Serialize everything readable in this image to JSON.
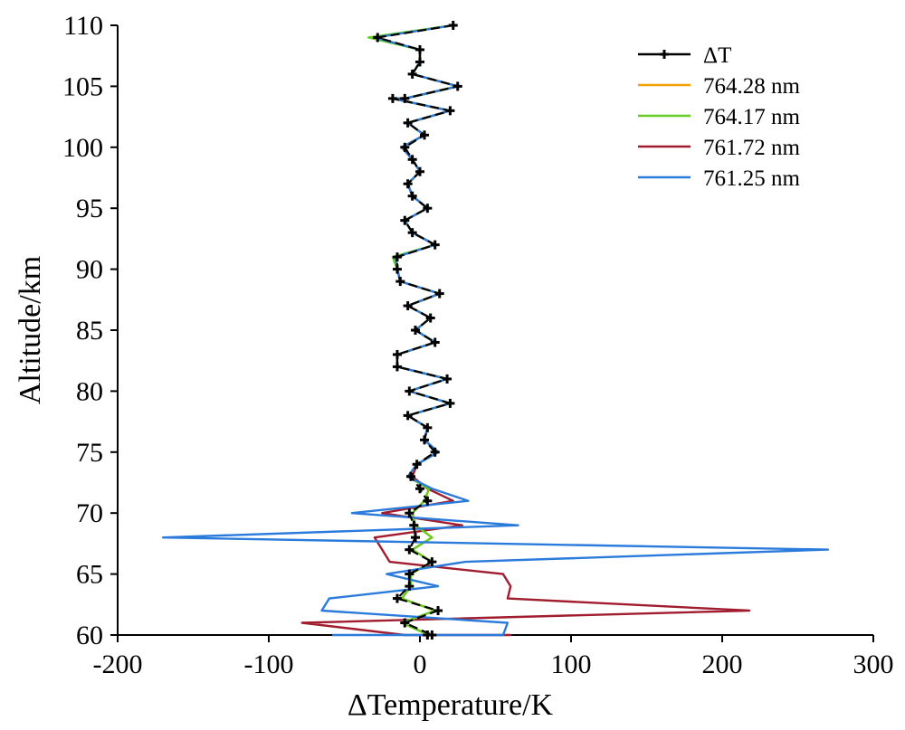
{
  "chart_data": {
    "type": "line",
    "title": "",
    "xlabel": "ΔTemperature/K",
    "ylabel": "Altitude/km",
    "xlim": [
      -200,
      300
    ],
    "ylim": [
      60,
      110
    ],
    "xticks": [
      -200,
      -100,
      0,
      100,
      200,
      300
    ],
    "yticks": [
      60,
      65,
      70,
      75,
      80,
      85,
      90,
      95,
      100,
      105,
      110
    ],
    "xtick_labels": [
      "-200",
      "-100",
      "0",
      "100",
      "200",
      "300"
    ],
    "ytick_labels": [
      "60",
      "65",
      "70",
      "75",
      "80",
      "85",
      "90",
      "95",
      "100",
      "105",
      "110"
    ],
    "grid": false,
    "legend_position": "top-right",
    "series": [
      {
        "name": "ΔT",
        "color": "#000000",
        "marker": "plus",
        "dashed": true,
        "points": [
          [
            22,
            110
          ],
          [
            -28,
            109
          ],
          [
            0,
            108
          ],
          [
            0,
            107
          ],
          [
            -5,
            106
          ],
          [
            25,
            105
          ],
          [
            -10,
            104
          ],
          [
            -18,
            104
          ],
          [
            20,
            103
          ],
          [
            -8,
            102
          ],
          [
            3,
            101
          ],
          [
            -10,
            100
          ],
          [
            -5,
            99
          ],
          [
            0,
            98
          ],
          [
            -8,
            97
          ],
          [
            -5,
            96
          ],
          [
            5,
            95
          ],
          [
            -10,
            94
          ],
          [
            -5,
            93
          ],
          [
            10,
            92
          ],
          [
            -15,
            91
          ],
          [
            -15,
            90
          ],
          [
            -13,
            89
          ],
          [
            13,
            88
          ],
          [
            -8,
            87
          ],
          [
            7,
            86
          ],
          [
            -3,
            85
          ],
          [
            10,
            84
          ],
          [
            -15,
            83
          ],
          [
            -15,
            82
          ],
          [
            18,
            81
          ],
          [
            -7,
            80
          ],
          [
            20,
            79
          ],
          [
            -8,
            78
          ],
          [
            5,
            77
          ],
          [
            3,
            76
          ],
          [
            10,
            75
          ],
          [
            -2,
            74
          ],
          [
            -6,
            73
          ],
          [
            0,
            72
          ],
          [
            5,
            71
          ],
          [
            -7,
            70
          ],
          [
            -4,
            69
          ],
          [
            -3,
            68
          ],
          [
            -7,
            67
          ],
          [
            8,
            66
          ],
          [
            -7,
            65
          ],
          [
            -7,
            64
          ],
          [
            -15,
            63
          ],
          [
            12,
            62
          ],
          [
            -10,
            61
          ],
          [
            8,
            60
          ],
          [
            5,
            60
          ]
        ]
      },
      {
        "name": "764.28 nm",
        "color": "#f5a000",
        "points": [
          [
            22,
            110
          ],
          [
            -32,
            109
          ],
          [
            0,
            108
          ],
          [
            0,
            107
          ],
          [
            -5,
            106
          ],
          [
            25,
            105
          ],
          [
            -10,
            104
          ],
          [
            -18,
            104
          ],
          [
            20,
            103
          ],
          [
            -8,
            102
          ],
          [
            3,
            101
          ],
          [
            -12,
            100
          ],
          [
            -5,
            99
          ],
          [
            0,
            98
          ],
          [
            -8,
            97
          ],
          [
            -5,
            96
          ],
          [
            5,
            95
          ],
          [
            -10,
            94
          ],
          [
            -5,
            93
          ],
          [
            10,
            92
          ],
          [
            -17,
            91
          ],
          [
            -15,
            90
          ],
          [
            -13,
            89
          ],
          [
            13,
            88
          ],
          [
            -8,
            87
          ],
          [
            7,
            86
          ],
          [
            -3,
            85
          ],
          [
            10,
            84
          ],
          [
            -15,
            83
          ],
          [
            -15,
            82
          ],
          [
            18,
            81
          ],
          [
            -7,
            80
          ],
          [
            20,
            79
          ],
          [
            -8,
            78
          ],
          [
            5,
            77
          ],
          [
            3,
            76
          ],
          [
            12,
            75
          ],
          [
            -2,
            74
          ],
          [
            -8,
            73
          ],
          [
            6,
            72
          ],
          [
            3,
            71
          ],
          [
            -5,
            70
          ],
          [
            -3,
            69
          ],
          [
            8,
            68
          ],
          [
            -5,
            67
          ],
          [
            8,
            66
          ],
          [
            -6,
            65
          ],
          [
            -6,
            64
          ],
          [
            -12,
            63
          ],
          [
            10,
            62
          ],
          [
            -12,
            61
          ],
          [
            6,
            60
          ],
          [
            5,
            60
          ]
        ]
      },
      {
        "name": "764.17 nm",
        "color": "#66cc22",
        "points": [
          [
            22,
            110
          ],
          [
            -34,
            109
          ],
          [
            0,
            108
          ],
          [
            0,
            107
          ],
          [
            -5,
            106
          ],
          [
            25,
            105
          ],
          [
            -10,
            104
          ],
          [
            -18,
            104
          ],
          [
            20,
            103
          ],
          [
            -8,
            102
          ],
          [
            3,
            101
          ],
          [
            -12,
            100
          ],
          [
            -5,
            99
          ],
          [
            0,
            98
          ],
          [
            -8,
            97
          ],
          [
            -5,
            96
          ],
          [
            5,
            95
          ],
          [
            -10,
            94
          ],
          [
            -5,
            93
          ],
          [
            10,
            92
          ],
          [
            -18,
            91
          ],
          [
            -15,
            90
          ],
          [
            -13,
            89
          ],
          [
            13,
            88
          ],
          [
            -8,
            87
          ],
          [
            7,
            86
          ],
          [
            -3,
            85
          ],
          [
            10,
            84
          ],
          [
            -15,
            83
          ],
          [
            -15,
            82
          ],
          [
            18,
            81
          ],
          [
            -7,
            80
          ],
          [
            20,
            79
          ],
          [
            -8,
            78
          ],
          [
            5,
            77
          ],
          [
            3,
            76
          ],
          [
            12,
            75
          ],
          [
            -2,
            74
          ],
          [
            -8,
            73
          ],
          [
            6,
            72
          ],
          [
            3,
            71
          ],
          [
            -5,
            70
          ],
          [
            -3,
            69
          ],
          [
            8,
            68
          ],
          [
            -5,
            67
          ],
          [
            8,
            66
          ],
          [
            -6,
            65
          ],
          [
            -6,
            64
          ],
          [
            -12,
            63
          ],
          [
            10,
            62
          ],
          [
            -12,
            61
          ],
          [
            6,
            60
          ],
          [
            5,
            60
          ]
        ]
      },
      {
        "name": "761.72 nm",
        "color": "#a01c2e",
        "points": [
          [
            22,
            110
          ],
          [
            -30,
            109
          ],
          [
            0,
            108
          ],
          [
            0,
            107
          ],
          [
            -5,
            106
          ],
          [
            25,
            105
          ],
          [
            -10,
            104
          ],
          [
            -18,
            104
          ],
          [
            20,
            103
          ],
          [
            -8,
            102
          ],
          [
            3,
            101
          ],
          [
            -12,
            100
          ],
          [
            -5,
            99
          ],
          [
            0,
            98
          ],
          [
            -8,
            97
          ],
          [
            -5,
            96
          ],
          [
            5,
            95
          ],
          [
            -10,
            94
          ],
          [
            -5,
            93
          ],
          [
            10,
            92
          ],
          [
            -16,
            91
          ],
          [
            -15,
            90
          ],
          [
            -13,
            89
          ],
          [
            13,
            88
          ],
          [
            -8,
            87
          ],
          [
            7,
            86
          ],
          [
            -3,
            85
          ],
          [
            10,
            84
          ],
          [
            -15,
            83
          ],
          [
            -15,
            82
          ],
          [
            18,
            81
          ],
          [
            -7,
            80
          ],
          [
            20,
            79
          ],
          [
            -8,
            78
          ],
          [
            5,
            77
          ],
          [
            3,
            76
          ],
          [
            12,
            75
          ],
          [
            -2,
            74
          ],
          [
            -5,
            73
          ],
          [
            5,
            72
          ],
          [
            22,
            71
          ],
          [
            -25,
            70
          ],
          [
            28,
            69
          ],
          [
            -30,
            68
          ],
          [
            -25,
            67
          ],
          [
            -20,
            66
          ],
          [
            55,
            65
          ],
          [
            60,
            64
          ],
          [
            58,
            63
          ],
          [
            218,
            62
          ],
          [
            -78,
            61
          ],
          [
            -10,
            60
          ],
          [
            60,
            60
          ],
          [
            -5,
            60
          ]
        ]
      },
      {
        "name": "761.25 nm",
        "color": "#2a7bdb",
        "points": [
          [
            22,
            110
          ],
          [
            -30,
            109
          ],
          [
            0,
            108
          ],
          [
            0,
            107
          ],
          [
            -5,
            106
          ],
          [
            25,
            105
          ],
          [
            -10,
            104
          ],
          [
            -18,
            104
          ],
          [
            20,
            103
          ],
          [
            -8,
            102
          ],
          [
            3,
            101
          ],
          [
            -12,
            100
          ],
          [
            -5,
            99
          ],
          [
            0,
            98
          ],
          [
            -8,
            97
          ],
          [
            -5,
            96
          ],
          [
            5,
            95
          ],
          [
            -10,
            94
          ],
          [
            -5,
            93
          ],
          [
            10,
            92
          ],
          [
            -16,
            91
          ],
          [
            -15,
            90
          ],
          [
            -13,
            89
          ],
          [
            13,
            88
          ],
          [
            -8,
            87
          ],
          [
            7,
            86
          ],
          [
            -3,
            85
          ],
          [
            10,
            84
          ],
          [
            -15,
            83
          ],
          [
            -15,
            82
          ],
          [
            18,
            81
          ],
          [
            -7,
            80
          ],
          [
            20,
            79
          ],
          [
            -8,
            78
          ],
          [
            5,
            77
          ],
          [
            3,
            76
          ],
          [
            12,
            75
          ],
          [
            -2,
            74
          ],
          [
            -8,
            73
          ],
          [
            8,
            72
          ],
          [
            32,
            71
          ],
          [
            -45,
            70
          ],
          [
            65,
            69
          ],
          [
            -170,
            68
          ],
          [
            270,
            67
          ],
          [
            30,
            66
          ],
          [
            -22,
            65
          ],
          [
            12,
            64
          ],
          [
            -60,
            63
          ],
          [
            -65,
            62
          ],
          [
            58,
            61
          ],
          [
            55,
            60
          ],
          [
            -58,
            60
          ]
        ]
      }
    ]
  }
}
